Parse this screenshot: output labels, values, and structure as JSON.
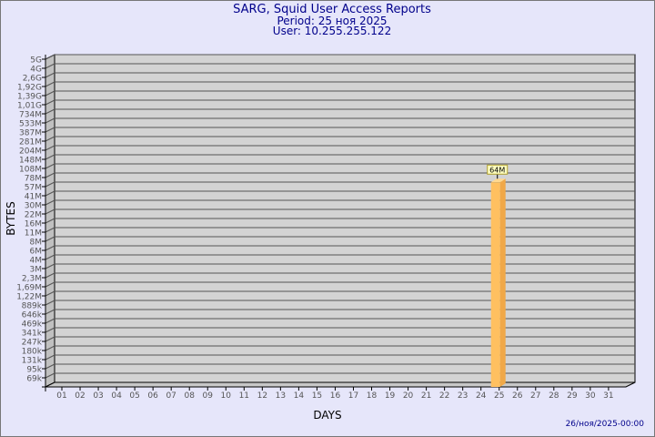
{
  "header": {
    "title": "SARG, Squid User Access Reports",
    "period": "Period: 25 ноя 2025",
    "user": "User: 10.255.255.122"
  },
  "footer": {
    "generated": "26/ноя/2025-00:00"
  },
  "colors": {
    "background": "#e6e6fa",
    "wall": "#d3d3d3",
    "bar": "#ffc060",
    "title": "#00008b"
  },
  "chart_data": {
    "type": "bar",
    "title": "SARG, Squid User Access Reports",
    "xlabel": "DAYS",
    "ylabel": "BYTES",
    "y_scale": "log",
    "grid": true,
    "y_tick_labels": [
      "5G",
      "4G",
      "2,6G",
      "1,92G",
      "1,39G",
      "1,01G",
      "734M",
      "533M",
      "387M",
      "281M",
      "204M",
      "148M",
      "108M",
      "78M",
      "57M",
      "41M",
      "30M",
      "22M",
      "16M",
      "11M",
      "8M",
      "6M",
      "4M",
      "3M",
      "2,3M",
      "1,69M",
      "1,22M",
      "889k",
      "646k",
      "469k",
      "341k",
      "247k",
      "180k",
      "131k",
      "95k",
      "69k"
    ],
    "categories": [
      "01",
      "02",
      "03",
      "04",
      "05",
      "06",
      "07",
      "08",
      "09",
      "10",
      "11",
      "12",
      "13",
      "14",
      "15",
      "16",
      "17",
      "18",
      "19",
      "20",
      "21",
      "22",
      "23",
      "24",
      "25",
      "26",
      "27",
      "28",
      "29",
      "30",
      "31"
    ],
    "series": [
      {
        "points": [
          {
            "day": "25",
            "value": 64000000,
            "label": "64M"
          }
        ]
      }
    ]
  }
}
